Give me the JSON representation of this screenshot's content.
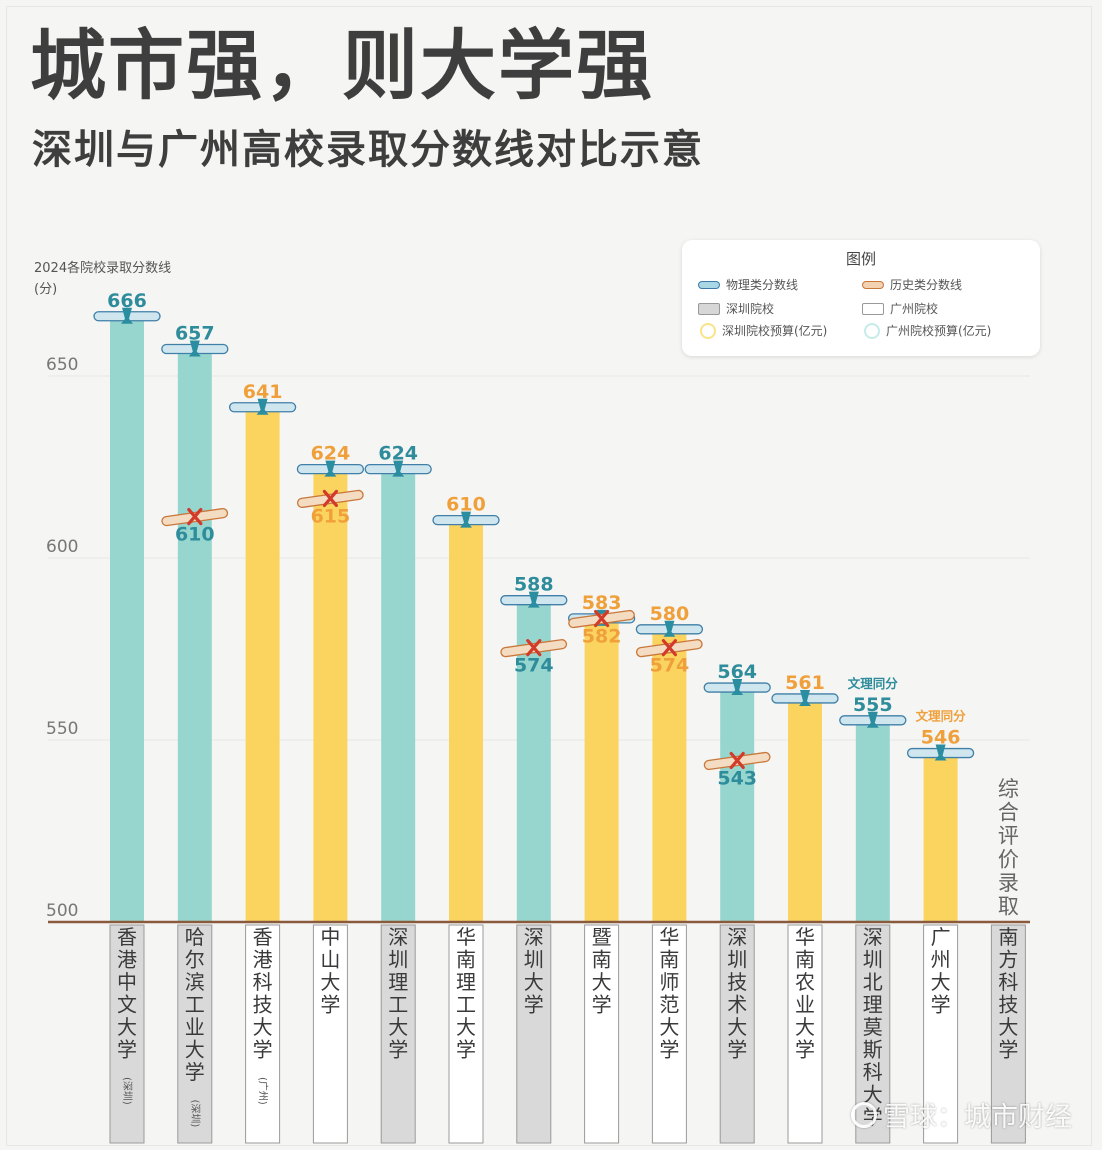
{
  "header": {
    "title": "城市强，则大学强",
    "subtitle": "深圳与广州高校录取分数线对比示意"
  },
  "yaxis": {
    "title_line1": "2024各院校录取分数线",
    "title_line2": "(分)"
  },
  "legend": {
    "title": "图例",
    "physics": "物理类分数线",
    "history": "历史类分数线",
    "sz_school": "深圳院校",
    "gz_school": "广州院校",
    "sz_budget": "深圳院校预算(亿元)",
    "gz_budget": "广州院校预算(亿元)"
  },
  "colors": {
    "teal": "#97d6cf",
    "yellow": "#fbd460",
    "teal_label": "#2e8c9b",
    "orange_label": "#f0a03a",
    "axis": "#8a5a3c",
    "grid": "#e6e6e3",
    "history_mark": "#d23a2a"
  },
  "watermark": "雪球：城市财经",
  "chart_data": {
    "type": "bar",
    "ylim": [
      500,
      680
    ],
    "yticks": [
      500,
      550,
      600,
      650
    ],
    "grid": true,
    "legend_position": "top-right",
    "categories": [
      {
        "name": "香港中文大学",
        "suffix": "(深圳)",
        "city": "深圳"
      },
      {
        "name": "哈尔滨工业大学",
        "suffix": "(深圳)",
        "city": "深圳"
      },
      {
        "name": "香港科技大学",
        "suffix": "(广州)",
        "city": "广州"
      },
      {
        "name": "中山大学",
        "suffix": "",
        "city": "广州"
      },
      {
        "name": "深圳理工大学",
        "suffix": "",
        "city": "深圳"
      },
      {
        "name": "华南理工大学",
        "suffix": "",
        "city": "广州"
      },
      {
        "name": "深圳大学",
        "suffix": "",
        "city": "深圳"
      },
      {
        "name": "暨南大学",
        "suffix": "",
        "city": "广州"
      },
      {
        "name": "华南师范大学",
        "suffix": "",
        "city": "广州"
      },
      {
        "name": "深圳技术大学",
        "suffix": "",
        "city": "深圳"
      },
      {
        "name": "华南农业大学",
        "suffix": "",
        "city": "广州"
      },
      {
        "name": "深圳北理莫斯科大学",
        "suffix": "",
        "city": "深圳"
      },
      {
        "name": "广州大学",
        "suffix": "",
        "city": "广州"
      },
      {
        "name": "南方科技大学",
        "suffix": "",
        "city": "深圳"
      }
    ],
    "series": [
      {
        "name": "物理类分数线",
        "values": [
          666,
          657,
          641,
          624,
          624,
          610,
          588,
          583,
          580,
          564,
          561,
          555,
          546,
          null
        ]
      },
      {
        "name": "历史类分数线",
        "values": [
          null,
          610,
          null,
          615,
          null,
          null,
          574,
          582,
          574,
          543,
          null,
          null,
          null,
          null
        ]
      }
    ],
    "annotations": [
      {
        "index": 11,
        "text": "文理同分"
      },
      {
        "index": 12,
        "text": "文理同分"
      },
      {
        "index": 13,
        "text": "综合评价录取"
      }
    ]
  }
}
